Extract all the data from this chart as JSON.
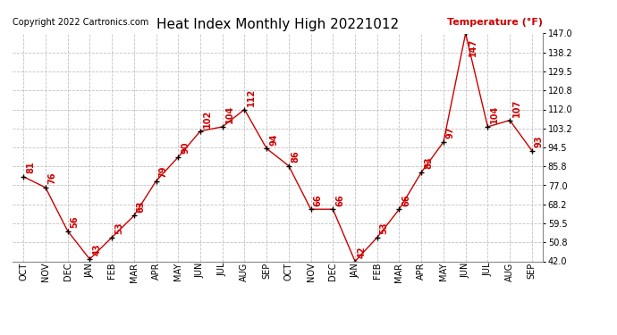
{
  "title": "Heat Index Monthly High 20221012",
  "ylabel": "Temperature (°F)",
  "copyright": "Copyright 2022 Cartronics.com",
  "months": [
    "OCT",
    "NOV",
    "DEC",
    "JAN",
    "FEB",
    "MAR",
    "APR",
    "MAY",
    "JUN",
    "JUL",
    "AUG",
    "SEP",
    "OCT",
    "NOV",
    "DEC",
    "JAN",
    "FEB",
    "MAR",
    "APR",
    "MAY",
    "JUN",
    "JUL",
    "AUG",
    "SEP"
  ],
  "values": [
    81,
    76,
    56,
    43,
    53,
    63,
    79,
    90,
    102,
    104,
    112,
    94,
    86,
    66,
    66,
    42,
    53,
    66,
    83,
    97,
    147,
    104,
    107,
    93
  ],
  "line_color": "#cc0000",
  "marker": "+",
  "grid_color": "#bbbbbb",
  "bg_color": "#ffffff",
  "ylim_min": 42.0,
  "ylim_max": 147.0,
  "yticks": [
    42.0,
    50.8,
    59.5,
    68.2,
    77.0,
    85.8,
    94.5,
    103.2,
    112.0,
    120.8,
    129.5,
    138.2,
    147.0
  ],
  "title_fontsize": 11,
  "label_fontsize": 7,
  "annotation_fontsize": 7,
  "copyright_fontsize": 7,
  "ylabel_fontsize": 8
}
